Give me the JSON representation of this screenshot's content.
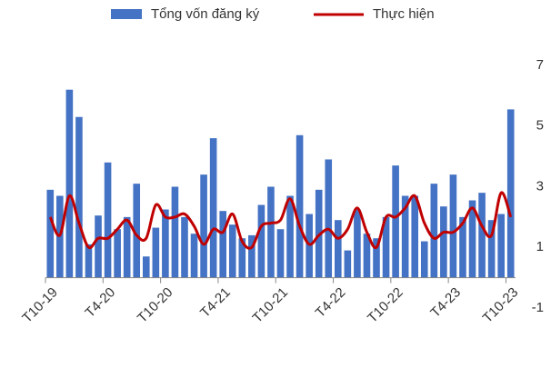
{
  "chart_data": {
    "type": "bar_line",
    "categories": [
      "T10-19",
      null,
      null,
      null,
      null,
      null,
      "T4-20",
      null,
      null,
      null,
      null,
      null,
      "T10-20",
      null,
      null,
      null,
      null,
      null,
      "T4-21",
      null,
      null,
      null,
      null,
      null,
      "T10-21",
      null,
      null,
      null,
      null,
      null,
      "T4-22",
      null,
      null,
      null,
      null,
      null,
      "T10-22",
      null,
      null,
      null,
      null,
      null,
      "T4-23",
      null,
      null,
      null,
      null,
      null,
      "T10-23"
    ],
    "series": [
      {
        "name": "Tổng vốn đăng ký",
        "type": "bar",
        "color": "#4472c4",
        "values": [
          2.9,
          2.7,
          6.2,
          5.3,
          1.1,
          2.05,
          3.8,
          1.6,
          2.0,
          3.1,
          0.7,
          1.65,
          2.25,
          3.0,
          2.0,
          1.45,
          3.4,
          4.6,
          2.2,
          1.75,
          1.3,
          1.4,
          2.4,
          3.0,
          1.6,
          2.7,
          4.7,
          2.1,
          2.9,
          3.9,
          1.9,
          0.9,
          2.25,
          1.45,
          1.3,
          2.0,
          3.7,
          2.7,
          2.7,
          1.2,
          3.1,
          2.35,
          3.4,
          2.0,
          2.55,
          2.8,
          1.9,
          2.1,
          5.55
        ]
      },
      {
        "name": "Thực hiện",
        "type": "line",
        "color": "#c00000",
        "values": [
          2.0,
          1.4,
          2.7,
          1.8,
          1.0,
          1.3,
          1.3,
          1.6,
          1.9,
          1.4,
          1.3,
          2.4,
          2.0,
          2.0,
          2.1,
          1.7,
          1.1,
          1.6,
          1.5,
          2.1,
          1.2,
          1.0,
          1.7,
          1.8,
          1.9,
          2.6,
          1.7,
          1.1,
          1.4,
          1.6,
          1.3,
          1.6,
          2.3,
          1.5,
          1.0,
          2.0,
          2.0,
          2.3,
          2.7,
          1.8,
          1.3,
          1.5,
          1.5,
          1.8,
          2.3,
          1.7,
          1.4,
          2.8,
          2.0
        ]
      }
    ],
    "ylim": [
      -1,
      7
    ],
    "yticks": [
      -1,
      1,
      3,
      5,
      7
    ],
    "grid": false,
    "legend": "top"
  }
}
